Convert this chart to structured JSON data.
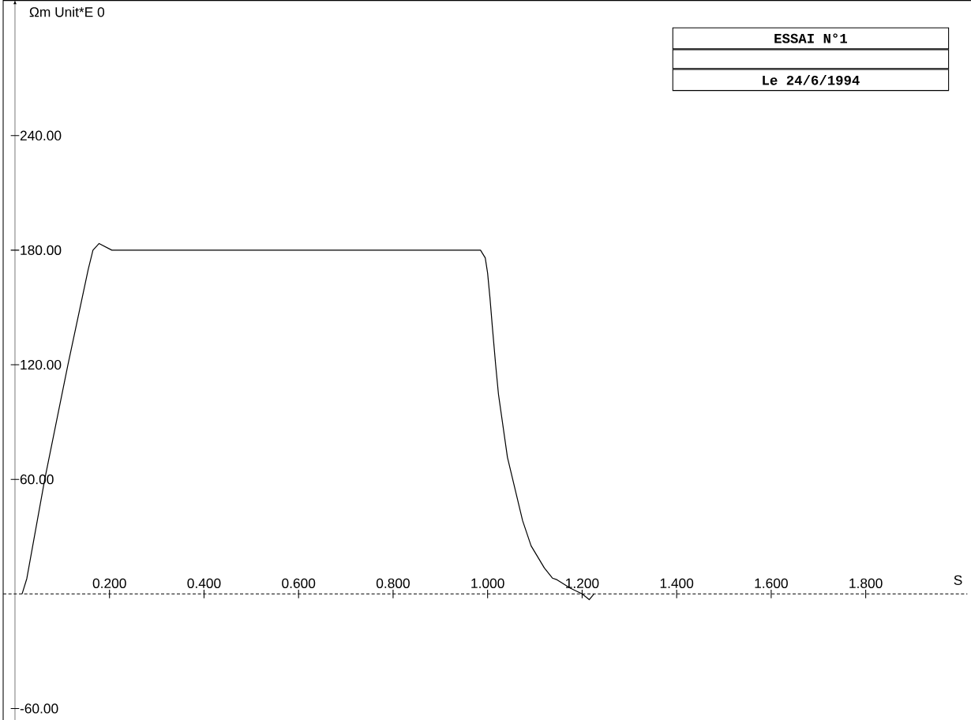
{
  "chart_data": {
    "type": "line",
    "title": "ESSAI N°1",
    "subtitle": "Le 24/6/1994",
    "xlabel": "S",
    "ylabel": "Ωm Unit*E 0",
    "xlim": [
      -0.025,
      2.015
    ],
    "ylim": [
      -66,
      311
    ],
    "xticks": [
      {
        "value": 0.2,
        "label": "0.200"
      },
      {
        "value": 0.4,
        "label": "0.400"
      },
      {
        "value": 0.6,
        "label": "0.600"
      },
      {
        "value": 0.8,
        "label": "0.800"
      },
      {
        "value": 1.0,
        "label": "1.000"
      },
      {
        "value": 1.2,
        "label": "1.200"
      },
      {
        "value": 1.4,
        "label": "1.400"
      },
      {
        "value": 1.6,
        "label": "1.600"
      },
      {
        "value": 1.8,
        "label": "1.800"
      }
    ],
    "yticks": [
      {
        "value": -60,
        "label": "-60.00"
      },
      {
        "value": 60,
        "label": "60.00"
      },
      {
        "value": 120,
        "label": "120.00"
      },
      {
        "value": 180,
        "label": "180.00"
      },
      {
        "value": 240,
        "label": "240.00"
      }
    ],
    "x": [
      0.015,
      0.025,
      0.063,
      0.112,
      0.155,
      0.165,
      0.178,
      0.205,
      0.985,
      0.995,
      1.0,
      1.005,
      1.01,
      1.017,
      1.023,
      1.042,
      1.074,
      1.092,
      1.12,
      1.137,
      1.147,
      1.175,
      1.2,
      1.215,
      1.225
    ],
    "series": [
      {
        "color": "#000000",
        "values": [
          0,
          8,
          60,
          120,
          170,
          180,
          183.5,
          180,
          180,
          176,
          168,
          155,
          140,
          120,
          104.5,
          71.5,
          38.4,
          25.2,
          13.6,
          8.3,
          7.4,
          3,
          0,
          -3,
          0
        ]
      }
    ],
    "ref_lines": [
      {
        "axis": "y",
        "value": 0,
        "line_style": "dashed",
        "color": "#000000"
      }
    ],
    "line_style": "solid",
    "marker": "none"
  }
}
